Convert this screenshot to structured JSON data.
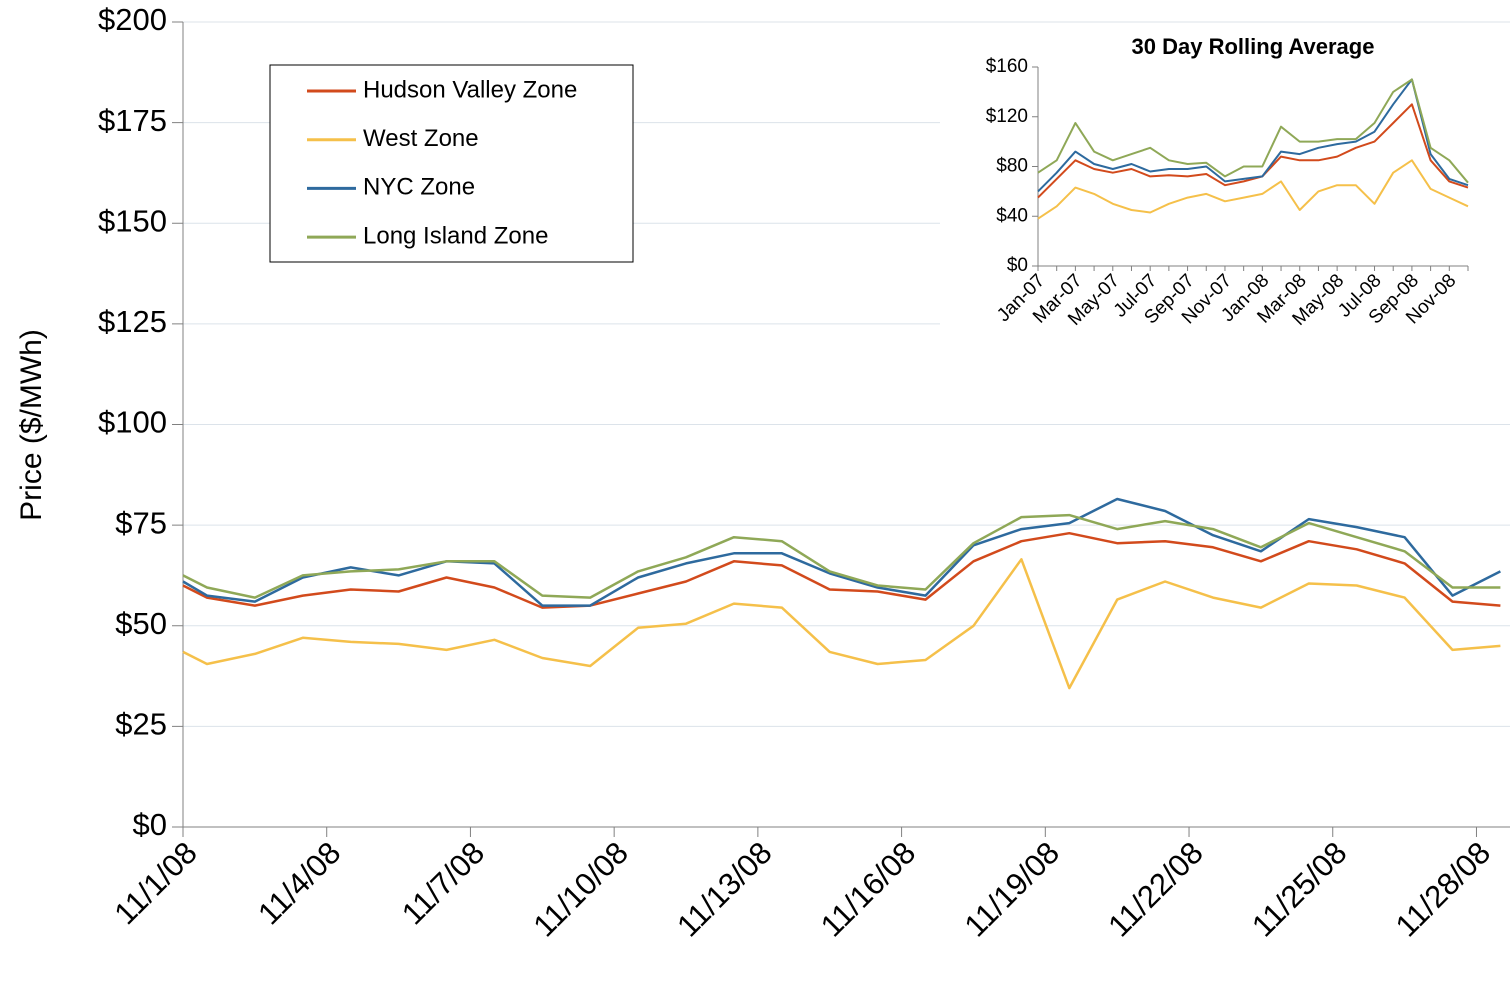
{
  "chart_data": [
    {
      "type": "line",
      "y_label": "Price ($/MWh)",
      "x": [
        1,
        1.5,
        2.5,
        3.5,
        4.5,
        5.5,
        6.5,
        7.5,
        8.5,
        9.5,
        10.5,
        11.5,
        12.5,
        13.5,
        14.5,
        15.5,
        16.5,
        17.5,
        18.5,
        19.5,
        20.5,
        21.5,
        22.5,
        23.5,
        24.5,
        25.5,
        26.5,
        27.5,
        28.5
      ],
      "xlim": [
        1,
        28.7
      ],
      "xticks": [
        {
          "value": 1,
          "label": "11/1/08"
        },
        {
          "value": 4,
          "label": "11/4/08"
        },
        {
          "value": 7,
          "label": "11/7/08"
        },
        {
          "value": 10,
          "label": "11/10/08"
        },
        {
          "value": 13,
          "label": "11/13/08"
        },
        {
          "value": 16,
          "label": "11/16/08"
        },
        {
          "value": 19,
          "label": "11/19/08"
        },
        {
          "value": 22,
          "label": "11/22/08"
        },
        {
          "value": 25,
          "label": "11/25/08"
        },
        {
          "value": 28,
          "label": "11/28/08"
        }
      ],
      "ylim": [
        0,
        200
      ],
      "yticks": [
        {
          "value": 0,
          "label": "$0"
        },
        {
          "value": 25,
          "label": "$25"
        },
        {
          "value": 50,
          "label": "$50"
        },
        {
          "value": 75,
          "label": "$75"
        },
        {
          "value": 100,
          "label": "$100"
        },
        {
          "value": 125,
          "label": "$125"
        },
        {
          "value": 150,
          "label": "$150"
        },
        {
          "value": 175,
          "label": "$175"
        },
        {
          "value": 200,
          "label": "$200"
        }
      ],
      "grid": true,
      "legend": "upper-left",
      "series": [
        {
          "name": "Hudson Valley Zone",
          "color": "#d24a1c",
          "values": [
            60,
            57,
            55,
            57.5,
            59,
            58.5,
            62,
            59.5,
            54.5,
            55,
            58,
            61,
            66,
            65,
            59,
            58.5,
            56.5,
            66,
            71,
            73,
            70.5,
            71,
            69.5,
            66,
            71,
            69,
            65.5,
            56,
            55
          ]
        },
        {
          "name": "West Zone",
          "color": "#f5c04a",
          "values": [
            43.5,
            40.5,
            43,
            47,
            46,
            45.5,
            44,
            46.5,
            42,
            40,
            49.5,
            50.5,
            55.5,
            54.5,
            43.5,
            40.5,
            41.5,
            50,
            66.5,
            34.5,
            56.5,
            61,
            57,
            54.5,
            60.5,
            60,
            57,
            44,
            45
          ]
        },
        {
          "name": "NYC Zone",
          "color": "#2e6a9e",
          "values": [
            61,
            57.5,
            56,
            62,
            64.5,
            62.5,
            66,
            65.5,
            55,
            55,
            62,
            65.5,
            68,
            68,
            63,
            59.5,
            57.5,
            70,
            74,
            75.5,
            81.5,
            78.5,
            72.5,
            68.5,
            76.5,
            74.5,
            72,
            57.5,
            63.5
          ]
        },
        {
          "name": "Long Island Zone",
          "color": "#8fa857",
          "values": [
            62.5,
            59.5,
            57,
            62.5,
            63.5,
            64,
            66,
            66,
            57.5,
            57,
            63.5,
            67,
            72,
            71,
            63.5,
            60,
            59,
            70.5,
            77,
            77.5,
            74,
            76,
            74,
            69.5,
            75.5,
            72,
            68.5,
            59.5,
            59.5
          ]
        }
      ]
    },
    {
      "type": "line",
      "title": "30 Day Rolling Average",
      "categories": [
        "Jan-07",
        null,
        "Mar-07",
        null,
        "May-07",
        null,
        "Jul-07",
        null,
        "Sep-07",
        null,
        "Nov-07",
        null,
        "Jan-08",
        null,
        "Mar-08",
        null,
        "May-08",
        null,
        "Jul-08",
        null,
        "Sep-08",
        null,
        "Nov-08",
        null
      ],
      "ylim": [
        0,
        160
      ],
      "yticks": [
        {
          "value": 0,
          "label": "$0"
        },
        {
          "value": 40,
          "label": "$40"
        },
        {
          "value": 80,
          "label": "$80"
        },
        {
          "value": 120,
          "label": "$120"
        },
        {
          "value": 160,
          "label": "$160"
        }
      ],
      "series": [
        {
          "name": "Hudson Valley Zone",
          "color": "#d24a1c",
          "values": [
            55,
            70,
            85,
            78,
            75,
            78,
            72,
            73,
            72,
            74,
            65,
            68,
            72,
            88,
            85,
            85,
            88,
            95,
            100,
            115,
            130,
            85,
            68,
            63
          ]
        },
        {
          "name": "West Zone",
          "color": "#f5c04a",
          "values": [
            38,
            48,
            63,
            58,
            50,
            45,
            43,
            50,
            55,
            58,
            52,
            55,
            58,
            68,
            45,
            60,
            65,
            65,
            50,
            75,
            85,
            62,
            55,
            48
          ]
        },
        {
          "name": "NYC Zone",
          "color": "#2e6a9e",
          "values": [
            60,
            75,
            92,
            82,
            78,
            82,
            76,
            78,
            78,
            80,
            68,
            70,
            72,
            92,
            90,
            95,
            98,
            100,
            108,
            130,
            150,
            90,
            70,
            65
          ]
        },
        {
          "name": "Long Island Zone",
          "color": "#8fa857",
          "values": [
            75,
            85,
            115,
            92,
            85,
            90,
            95,
            85,
            82,
            83,
            72,
            80,
            80,
            112,
            100,
            100,
            102,
            102,
            115,
            140,
            150,
            95,
            85,
            67
          ]
        }
      ]
    }
  ]
}
